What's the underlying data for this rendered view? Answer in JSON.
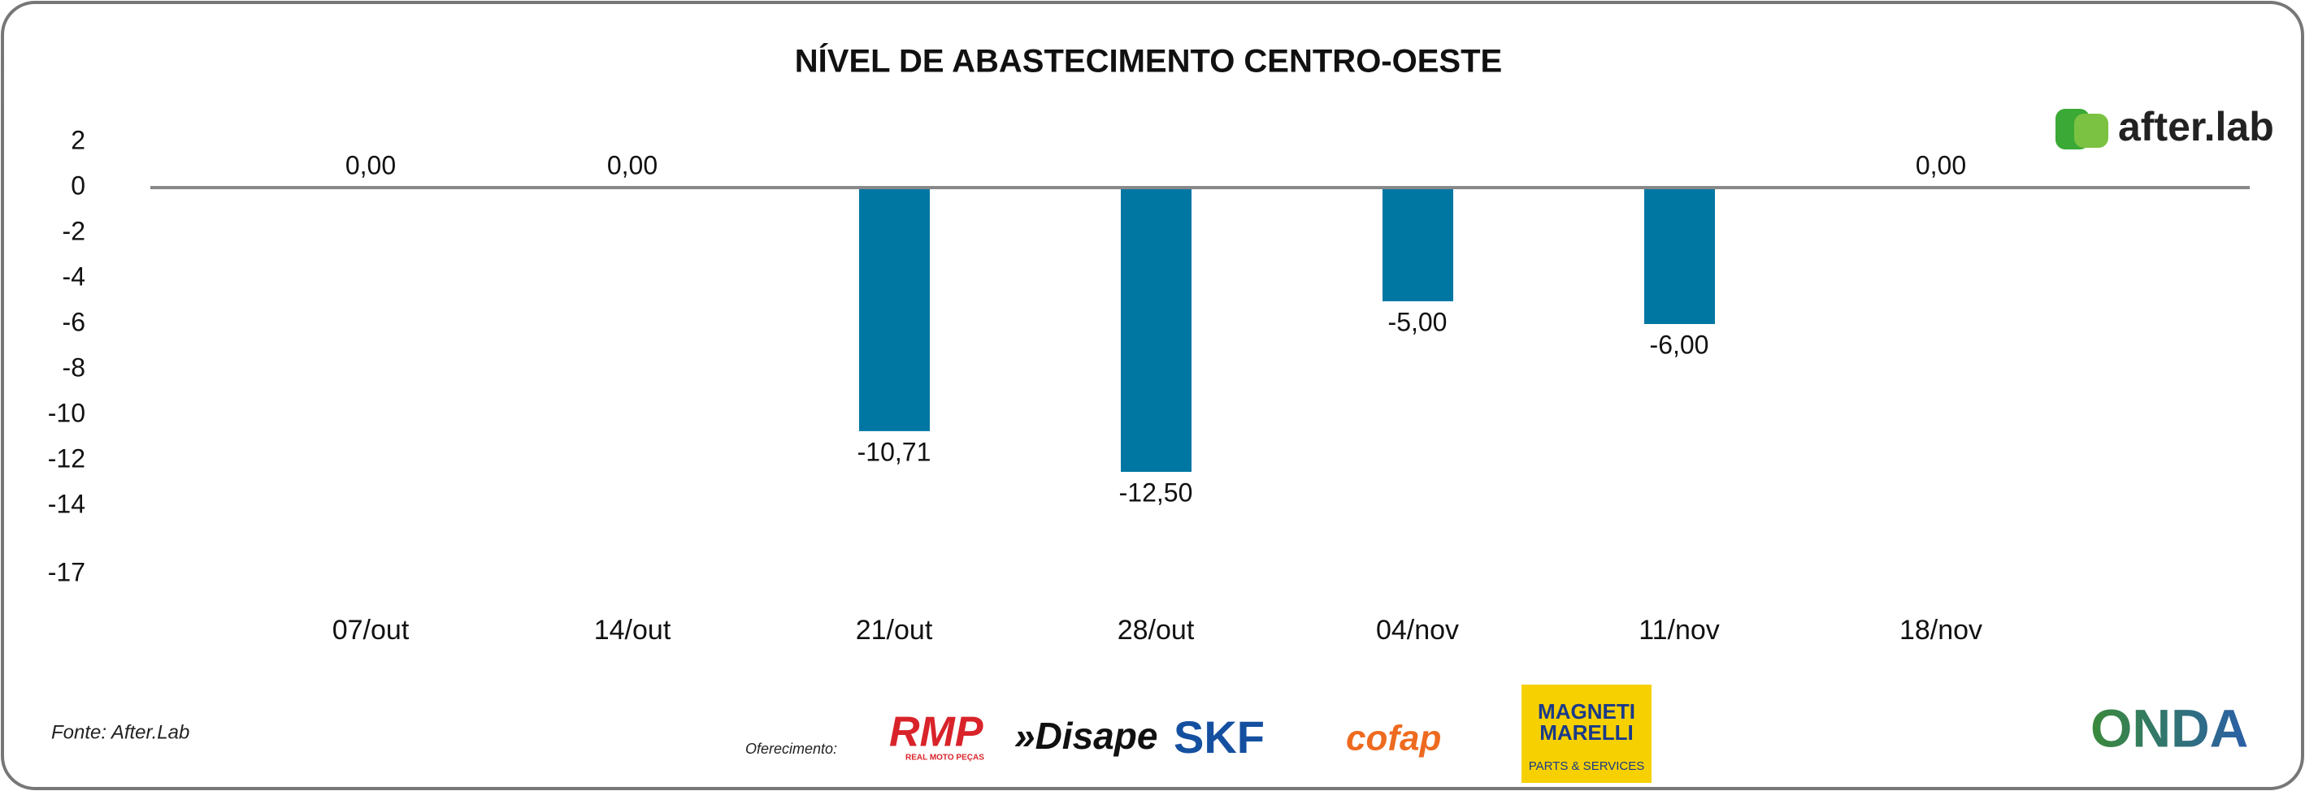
{
  "chart_data": {
    "type": "bar",
    "title": "NÍVEL DE ABASTECIMENTO CENTRO-OESTE",
    "categories": [
      "07/out",
      "14/out",
      "21/out",
      "28/out",
      "04/nov",
      "11/nov",
      "18/nov"
    ],
    "values": [
      0,
      0,
      -10.71,
      -12.5,
      -5,
      -6,
      0
    ],
    "value_labels": [
      "0,00",
      "0,00",
      "-10,71",
      "-12,50",
      "-5,00",
      "-6,00",
      "0,00"
    ],
    "color": "#0077a3",
    "ylim": [
      -17,
      2
    ],
    "yticks": [
      2,
      0,
      -2,
      -4,
      -6,
      -8,
      -10,
      -12,
      -14,
      -17
    ]
  },
  "brand": "after.lab",
  "footer": {
    "source": "Fonte: After.Lab",
    "sponsor_label": "Oferecimento:",
    "sponsors": [
      "RMP",
      "REAL MOTO PEÇAS",
      "»Disape",
      "SKF",
      "cofap",
      "MAGNETI",
      "MARELLI",
      "PARTS & SERVICES",
      "ONDA"
    ]
  }
}
